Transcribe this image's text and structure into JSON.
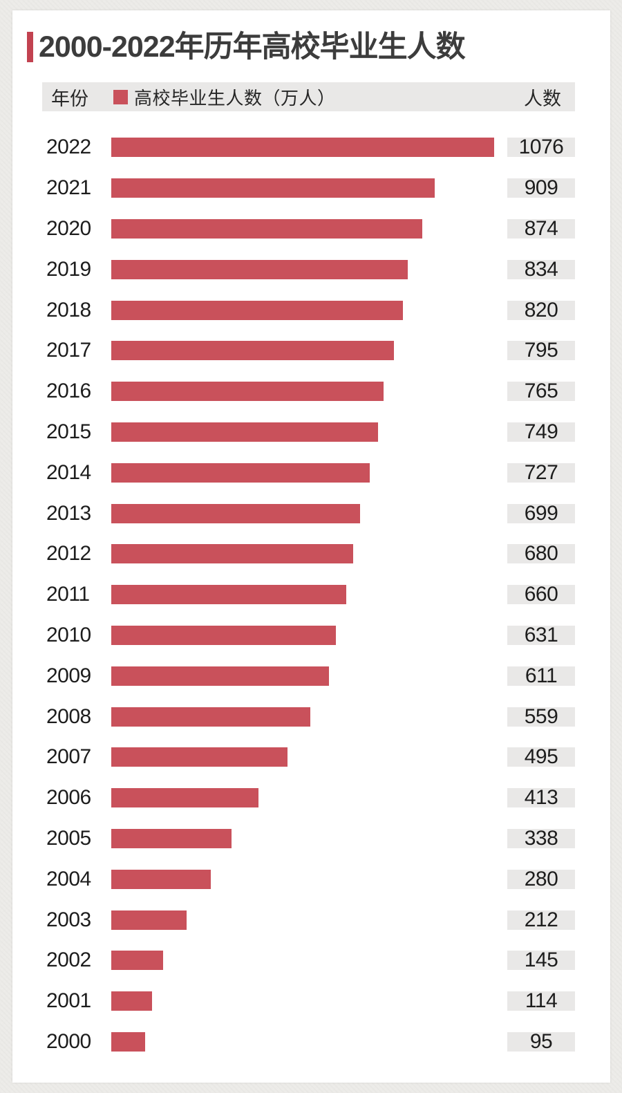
{
  "title": "2000-2022年历年高校毕业生人数",
  "header": {
    "year_label": "年份",
    "legend_label": "高校毕业生人数（万人）",
    "value_label": "人数"
  },
  "colors": {
    "bar": "#c9515b",
    "title_accent": "#c24250",
    "badge_background": "#e9e8e7",
    "page_background": "#ecebe8",
    "card_background": "#ffffff"
  },
  "chart_data": {
    "type": "bar",
    "orientation": "horizontal",
    "title": "2000-2022年历年高校毕业生人数",
    "legend": [
      "高校毕业生人数（万人）"
    ],
    "legend_position": "top",
    "xlabel": "",
    "ylabel": "年份",
    "value_column_label": "人数",
    "unit": "万人",
    "grid": false,
    "scale_max": 1076,
    "categories": [
      "2022",
      "2021",
      "2020",
      "2019",
      "2018",
      "2017",
      "2016",
      "2015",
      "2014",
      "2013",
      "2012",
      "2011",
      "2010",
      "2009",
      "2008",
      "2007",
      "2006",
      "2005",
      "2004",
      "2003",
      "2002",
      "2001",
      "2000"
    ],
    "values": [
      1076,
      909,
      874,
      834,
      820,
      795,
      765,
      749,
      727,
      699,
      680,
      660,
      631,
      611,
      559,
      495,
      413,
      338,
      280,
      212,
      145,
      114,
      95
    ]
  }
}
